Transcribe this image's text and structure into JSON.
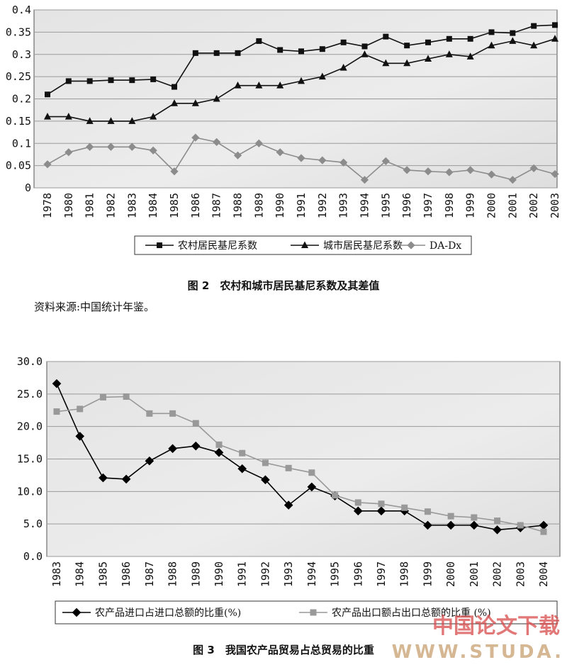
{
  "chart_data": [
    {
      "type": "line",
      "categories": [
        "1978",
        "1980",
        "1981",
        "1982",
        "1983",
        "1984",
        "1985",
        "1986",
        "1987",
        "1988",
        "1989",
        "1990",
        "1991",
        "1992",
        "1993",
        "1994",
        "1995",
        "1996",
        "1997",
        "1998",
        "1999",
        "2000",
        "2001",
        "2002",
        "2003"
      ],
      "series": [
        {
          "name": "农村居民基尼系数",
          "color": "#111111",
          "marker": "square",
          "values": [
            0.21,
            0.24,
            0.24,
            0.242,
            0.242,
            0.244,
            0.227,
            0.303,
            0.303,
            0.303,
            0.33,
            0.31,
            0.307,
            0.312,
            0.327,
            0.318,
            0.34,
            0.32,
            0.327,
            0.335,
            0.335,
            0.35,
            0.348,
            0.364,
            0.366
          ]
        },
        {
          "name": "城市居民基尼系数",
          "color": "#111111",
          "marker": "triangle",
          "values": [
            0.16,
            0.16,
            0.15,
            0.15,
            0.15,
            0.16,
            0.19,
            0.19,
            0.2,
            0.23,
            0.23,
            0.23,
            0.24,
            0.25,
            0.27,
            0.3,
            0.28,
            0.28,
            0.29,
            0.3,
            0.295,
            0.32,
            0.33,
            0.32,
            0.335
          ]
        },
        {
          "name": "DA-Dx",
          "color": "#8c8c8c",
          "marker": "diamond",
          "values": [
            0.053,
            0.08,
            0.092,
            0.092,
            0.092,
            0.084,
            0.037,
            0.113,
            0.103,
            0.073,
            0.1,
            0.08,
            0.067,
            0.062,
            0.057,
            0.018,
            0.06,
            0.04,
            0.037,
            0.035,
            0.04,
            0.03,
            0.018,
            0.044,
            0.031
          ]
        }
      ],
      "ylim": [
        0,
        0.4
      ],
      "yticks": [
        0,
        0.05,
        0.1,
        0.15,
        0.2,
        0.25,
        0.3,
        0.35,
        0.4
      ],
      "grid": true,
      "caption": "图 2　农村和城市居民基尼系数及其差值",
      "source": "资料来源:中国统计年鉴。"
    },
    {
      "type": "line",
      "categories": [
        "1983",
        "1984",
        "1985",
        "1986",
        "1987",
        "1988",
        "1989",
        "1990",
        "1991",
        "1992",
        "1993",
        "1994",
        "1995",
        "1996",
        "1997",
        "1998",
        "1999",
        "2000",
        "2001",
        "2002",
        "2003",
        "2004"
      ],
      "series": [
        {
          "name": "农产品进口占进口总额的比重(%)",
          "color": "#000000",
          "marker": "diamond",
          "values": [
            26.6,
            18.5,
            12.1,
            11.9,
            14.7,
            16.6,
            17.0,
            16.0,
            13.5,
            11.8,
            7.9,
            10.7,
            9.3,
            7.0,
            7.0,
            7.0,
            4.8,
            4.8,
            4.8,
            4.1,
            4.4,
            4.8
          ]
        },
        {
          "name": "农产品出口额占出口总额的比重 (%)",
          "color": "#999999",
          "marker": "square",
          "values": [
            22.3,
            22.7,
            24.5,
            24.6,
            22.0,
            22.0,
            20.5,
            17.2,
            15.9,
            14.4,
            13.6,
            12.9,
            9.4,
            8.3,
            8.1,
            7.5,
            6.9,
            6.2,
            6.0,
            5.5,
            4.8,
            3.8
          ]
        }
      ],
      "ylim": [
        0,
        30
      ],
      "yticks": [
        {
          "value": 0,
          "label": "0.0"
        },
        {
          "value": 5,
          "label": "5.0"
        },
        {
          "value": 10,
          "label": "10.0"
        },
        {
          "value": 15,
          "label": "15.0"
        },
        {
          "value": 20,
          "label": "20.0"
        },
        {
          "value": 25,
          "label": "25.0"
        },
        {
          "value": 30,
          "label": "30.0"
        }
      ],
      "grid": true,
      "caption": "图 3　我国农产品贸易占总贸易的比重"
    }
  ],
  "watermark": {
    "title": "中国论文下载",
    "url": "WWW.STUDA."
  }
}
